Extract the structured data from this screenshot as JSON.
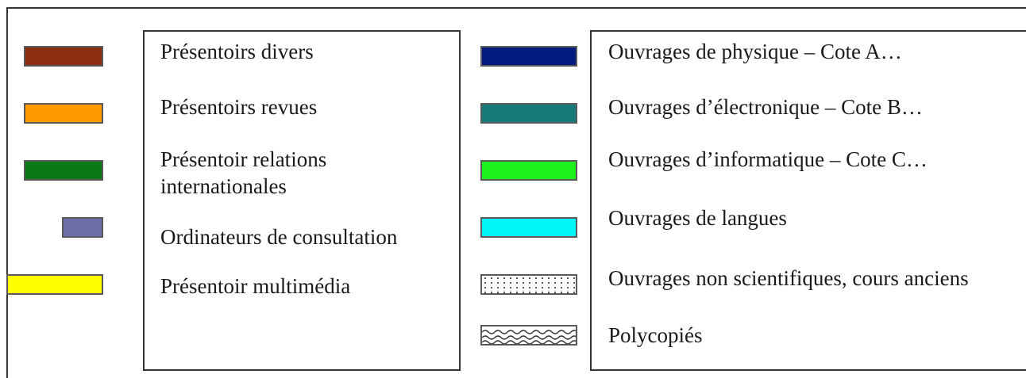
{
  "legend": {
    "left": [
      {
        "label": "Présentoirs divers",
        "color": "#8B2E0E"
      },
      {
        "label": "Présentoirs revues",
        "color": "#FF9A00"
      },
      {
        "label": "Présentoir relations internationales",
        "color": "#0B7A16"
      },
      {
        "label": "Ordinateurs de consultation",
        "color": "#6C6CA8"
      },
      {
        "label": "Présentoir multimédia",
        "color": "#FFFF00"
      }
    ],
    "right": [
      {
        "label": "Ouvrages de physique – Cote A…",
        "color": "#001A80"
      },
      {
        "label": "Ouvrages d’électronique – Cote B…",
        "color": "#167A7A"
      },
      {
        "label": "Ouvrages d’informatique – Cote C…",
        "color": "#1EF01E"
      },
      {
        "label": "Ouvrages de langues",
        "color": "#00F5F5"
      },
      {
        "label": "Ouvrages non scientifiques, cours anciens",
        "pattern": "dots"
      },
      {
        "label": "Polycopiés",
        "pattern": "waves"
      }
    ]
  }
}
